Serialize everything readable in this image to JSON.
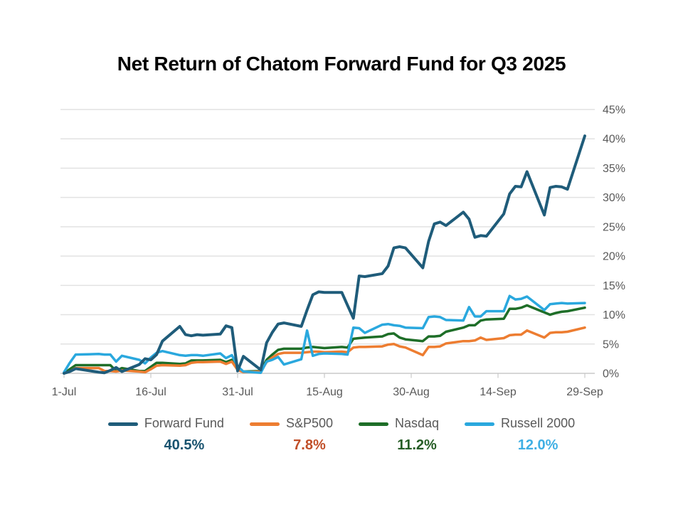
{
  "slide": {
    "title": "Net Return of Chatom Forward Fund for Q3 2025"
  },
  "chart_data": {
    "type": "line",
    "title": "Net Return of Chatom Forward Fund for Q3 2025",
    "grid": "horizontal",
    "legend_position": "bottom",
    "x_axis": {
      "tick_labels": [
        "1-Jul",
        "16-Jul",
        "31-Jul",
        "15-Aug",
        "30-Aug",
        "14-Sep",
        "29-Sep"
      ],
      "tick_day_offsets": [
        0,
        15,
        30,
        45,
        60,
        75,
        90
      ]
    },
    "y_axis": {
      "min": 0,
      "max": 45,
      "step": 5,
      "unit": "%",
      "tick_labels": [
        "0%",
        "5%",
        "10%",
        "15%",
        "20%",
        "25%",
        "30%",
        "35%",
        "40%",
        "45%"
      ],
      "tick_values": [
        0,
        5,
        10,
        15,
        20,
        25,
        30,
        35,
        40,
        45
      ]
    },
    "dates": [
      "Jul 1",
      "Jul 2",
      "Jul 3",
      "Jul 7",
      "Jul 8",
      "Jul 9",
      "Jul 10",
      "Jul 11",
      "Jul 14",
      "Jul 15",
      "Jul 16",
      "Jul 17",
      "Jul 18",
      "Jul 21",
      "Jul 22",
      "Jul 23",
      "Jul 24",
      "Jul 25",
      "Jul 28",
      "Jul 29",
      "Jul 30",
      "Jul 31",
      "Aug 1",
      "Aug 4",
      "Aug 5",
      "Aug 6",
      "Aug 7",
      "Aug 8",
      "Aug 11",
      "Aug 12",
      "Aug 13",
      "Aug 14",
      "Aug 15",
      "Aug 18",
      "Aug 19",
      "Aug 20",
      "Aug 21",
      "Aug 22",
      "Aug 25",
      "Aug 26",
      "Aug 27",
      "Aug 28",
      "Aug 29",
      "Sep 1",
      "Sep 2",
      "Sep 3",
      "Sep 4",
      "Sep 5",
      "Sep 8",
      "Sep 9",
      "Sep 10",
      "Sep 11",
      "Sep 12",
      "Sep 15",
      "Sep 16",
      "Sep 17",
      "Sep 18",
      "Sep 19",
      "Sep 22",
      "Sep 23",
      "Sep 24",
      "Sep 25",
      "Sep 26",
      "Sep 29"
    ],
    "day_offsets": [
      0,
      1,
      2,
      6,
      7,
      8,
      9,
      10,
      13,
      14,
      15,
      16,
      17,
      20,
      21,
      22,
      23,
      24,
      27,
      28,
      29,
      30,
      31,
      34,
      35,
      36,
      37,
      38,
      41,
      42,
      43,
      44,
      45,
      48,
      49,
      50,
      51,
      52,
      55,
      56,
      57,
      58,
      59,
      62,
      63,
      64,
      65,
      66,
      69,
      70,
      71,
      72,
      73,
      76,
      77,
      78,
      79,
      80,
      83,
      84,
      85,
      86,
      87,
      90
    ],
    "draw_order": [
      2,
      1,
      3,
      0
    ],
    "series": [
      {
        "name": "Forward Fund",
        "color": "#1F5C7A",
        "value_label": "40.5%",
        "value_color": "#19536F",
        "final_return_pct": 40.5,
        "line_width": 4,
        "values": [
          0.0,
          0.3,
          0.8,
          0.2,
          0.1,
          0.5,
          1.0,
          0.3,
          1.5,
          2.5,
          2.3,
          3.2,
          5.5,
          8.0,
          6.6,
          6.4,
          6.6,
          6.5,
          6.7,
          8.1,
          7.8,
          0.4,
          2.9,
          0.6,
          5.2,
          7.0,
          8.4,
          8.6,
          8.0,
          10.8,
          13.4,
          13.9,
          13.8,
          13.8,
          11.6,
          9.4,
          16.6,
          16.5,
          17.0,
          18.3,
          21.4,
          21.6,
          21.4,
          18.0,
          22.5,
          25.5,
          25.8,
          25.2,
          27.5,
          26.3,
          23.2,
          23.5,
          23.4,
          27.2,
          30.6,
          31.9,
          31.8,
          34.4,
          27.0,
          31.7,
          31.9,
          31.8,
          31.4,
          40.5
        ]
      },
      {
        "name": "S&P500",
        "color": "#ED7D31",
        "value_label": "7.8%",
        "value_color": "#C14F29",
        "final_return_pct": 7.8,
        "line_width": 3.5,
        "values": [
          0.0,
          0.3,
          0.9,
          0.9,
          0.4,
          0.4,
          0.3,
          0.5,
          0.3,
          0.2,
          0.7,
          1.3,
          1.4,
          1.3,
          1.4,
          1.8,
          1.9,
          1.9,
          2.0,
          1.6,
          2.0,
          0.6,
          0.2,
          0.3,
          1.9,
          2.7,
          3.3,
          3.5,
          3.5,
          3.6,
          3.7,
          3.7,
          3.6,
          3.7,
          3.6,
          4.4,
          4.5,
          4.5,
          4.6,
          4.9,
          5.0,
          4.6,
          4.4,
          3.1,
          4.5,
          4.5,
          4.6,
          5.1,
          5.5,
          5.5,
          5.6,
          6.1,
          5.7,
          6.0,
          6.5,
          6.6,
          6.6,
          7.3,
          6.1,
          6.9,
          7.0,
          7.0,
          7.1,
          7.8
        ]
      },
      {
        "name": "Nasdaq",
        "color": "#1E6E28",
        "value_label": "11.2%",
        "value_color": "#265D26",
        "final_return_pct": 11.2,
        "line_width": 3.5,
        "values": [
          0.0,
          0.7,
          1.4,
          1.4,
          1.4,
          1.4,
          0.4,
          0.9,
          0.4,
          0.4,
          1.1,
          1.8,
          1.8,
          1.6,
          1.7,
          2.2,
          2.2,
          2.2,
          2.3,
          1.9,
          2.3,
          0.7,
          0.3,
          0.4,
          2.3,
          3.2,
          4.0,
          4.2,
          4.2,
          4.4,
          4.5,
          4.4,
          4.3,
          4.5,
          4.4,
          5.9,
          6.0,
          6.1,
          6.3,
          6.7,
          6.8,
          6.1,
          5.8,
          5.5,
          6.3,
          6.3,
          6.4,
          7.1,
          7.8,
          8.2,
          8.2,
          9.0,
          9.2,
          9.3,
          11.0,
          11.0,
          11.2,
          11.6,
          10.4,
          10.0,
          10.3,
          10.5,
          10.6,
          11.2
        ]
      },
      {
        "name": "Russell 2000",
        "color": "#2AA8DE",
        "value_label": "12.0%",
        "value_color": "#3FAFE4",
        "final_return_pct": 12.0,
        "line_width": 3.5,
        "values": [
          0.2,
          1.8,
          3.2,
          3.3,
          3.2,
          3.2,
          2.0,
          3.0,
          2.3,
          1.7,
          2.7,
          3.5,
          3.8,
          3.1,
          3.0,
          3.1,
          3.1,
          3.0,
          3.4,
          2.6,
          3.1,
          1.2,
          0.3,
          0.1,
          2.0,
          2.3,
          2.8,
          1.5,
          2.4,
          7.3,
          3.0,
          3.3,
          3.4,
          3.3,
          3.2,
          7.8,
          7.7,
          6.9,
          8.3,
          8.4,
          8.2,
          8.1,
          7.8,
          7.7,
          9.6,
          9.7,
          9.6,
          9.1,
          9.0,
          11.3,
          9.7,
          9.7,
          10.6,
          10.6,
          13.2,
          12.6,
          12.7,
          13.1,
          10.8,
          11.8,
          11.9,
          12.0,
          11.9,
          12.0
        ]
      }
    ]
  }
}
